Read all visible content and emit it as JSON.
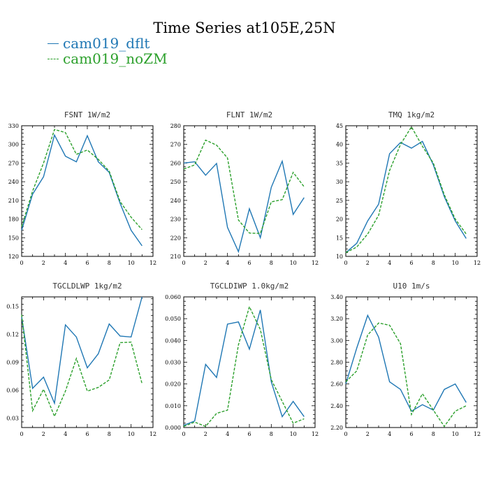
{
  "figure": {
    "title": "Time Series at105E,25N",
    "colors": {
      "dflt": "#1f77b4",
      "noZM": "#2ca02c"
    },
    "legend": [
      {
        "name": "cam019_dflt",
        "color": "#1f77b4",
        "style": "solid"
      },
      {
        "name": "cam019_noZM",
        "color": "#2ca02c",
        "style": "dashed"
      }
    ]
  },
  "chart_data": [
    {
      "type": "line",
      "title": "FSNT   1W/m2",
      "xlim": [
        0,
        12
      ],
      "ylim": [
        120,
        330
      ],
      "xticks": [
        "0",
        "2",
        "4",
        "6",
        "8",
        "10",
        "12"
      ],
      "yticks": [
        "120",
        "150",
        "180",
        "210",
        "240",
        "270",
        "300",
        "330"
      ],
      "x": [
        0,
        1,
        2,
        3,
        4,
        5,
        6,
        7,
        8,
        9,
        10,
        11
      ],
      "series": [
        {
          "name": "cam019_dflt",
          "values": [
            162,
            220,
            248,
            315,
            281,
            272,
            314,
            272,
            255,
            205,
            162,
            137
          ]
        },
        {
          "name": "cam019_noZM",
          "values": [
            168,
            225,
            270,
            324,
            319,
            284,
            291,
            276,
            257,
            208,
            183,
            163
          ]
        }
      ]
    },
    {
      "type": "line",
      "title": "FLNT   1W/m2",
      "xlim": [
        0,
        12
      ],
      "ylim": [
        210,
        280
      ],
      "xticks": [
        "0",
        "2",
        "4",
        "6",
        "8",
        "10",
        "12"
      ],
      "yticks": [
        "210",
        "220",
        "230",
        "240",
        "250",
        "260",
        "270",
        "280"
      ],
      "x": [
        0,
        1,
        2,
        3,
        4,
        5,
        6,
        7,
        8,
        9,
        10,
        11
      ],
      "series": [
        {
          "name": "cam019_dflt",
          "values": [
            260,
            260.7,
            253.5,
            259.8,
            225.5,
            212.5,
            235.5,
            220,
            247,
            261,
            232.5,
            241.5
          ]
        },
        {
          "name": "cam019_noZM",
          "values": [
            256.8,
            259,
            272.3,
            269.6,
            262.7,
            229.5,
            222.5,
            222.3,
            239.2,
            240.4,
            255,
            247.3
          ]
        }
      ]
    },
    {
      "type": "line",
      "title": "TMQ   1kg/m2",
      "xlim": [
        0,
        12
      ],
      "ylim": [
        10,
        45
      ],
      "xticks": [
        "0",
        "2",
        "4",
        "6",
        "8",
        "10",
        "12"
      ],
      "yticks": [
        "10",
        "15",
        "20",
        "25",
        "30",
        "35",
        "40",
        "45"
      ],
      "x": [
        0,
        1,
        2,
        3,
        4,
        5,
        6,
        7,
        8,
        9,
        10,
        11
      ],
      "series": [
        {
          "name": "cam019_dflt",
          "values": [
            11,
            13.5,
            19.5,
            24,
            37.5,
            40.5,
            39,
            40.8,
            34.5,
            26,
            19.5,
            14.8
          ]
        },
        {
          "name": "cam019_noZM",
          "values": [
            11,
            12.5,
            16,
            21,
            33,
            40,
            44.7,
            39.5,
            35,
            26.5,
            20,
            16
          ]
        }
      ]
    },
    {
      "type": "line",
      "title": "TGCLDLWP   1kg/m2",
      "xlim": [
        0,
        12
      ],
      "ylim": [
        0.02,
        0.16
      ],
      "xticks": [
        "0",
        "2",
        "4",
        "6",
        "8",
        "10",
        "12"
      ],
      "yticks": [
        "0.03",
        "0.06",
        "0.09",
        "0.12",
        "0.15"
      ],
      "x": [
        0,
        1,
        2,
        3,
        4,
        5,
        6,
        7,
        8,
        9,
        10,
        11
      ],
      "series": [
        {
          "name": "cam019_dflt",
          "values": [
            0.1385,
            0.062,
            0.074,
            0.046,
            0.13,
            0.117,
            0.084,
            0.099,
            0.131,
            0.118,
            0.117,
            0.16
          ]
        },
        {
          "name": "cam019_noZM",
          "values": [
            0.141,
            0.038,
            0.061,
            0.032,
            0.059,
            0.094,
            0.059,
            0.063,
            0.071,
            0.111,
            0.1115,
            0.067
          ]
        }
      ]
    },
    {
      "type": "line",
      "title": "TGCLDIWP   1.0kg/m2",
      "xlim": [
        0,
        12
      ],
      "ylim": [
        0,
        0.06
      ],
      "xticks": [
        "0",
        "2",
        "4",
        "6",
        "8",
        "10",
        "12"
      ],
      "yticks": [
        "0.000",
        "0.010",
        "0.020",
        "0.030",
        "0.040",
        "0.050",
        "0.060"
      ],
      "x": [
        0,
        1,
        2,
        3,
        4,
        5,
        6,
        7,
        8,
        9,
        10,
        11
      ],
      "series": [
        {
          "name": "cam019_dflt",
          "values": [
            0.001,
            0.003,
            0.029,
            0.023,
            0.0475,
            0.0485,
            0.036,
            0.054,
            0.021,
            0.005,
            0.012,
            0.005
          ]
        },
        {
          "name": "cam019_noZM",
          "values": [
            0.0005,
            0.0025,
            0.0005,
            0.0065,
            0.008,
            0.038,
            0.0555,
            0.045,
            0.022,
            0.012,
            0.002,
            0.004
          ]
        }
      ]
    },
    {
      "type": "line",
      "title": "U10   1m/s",
      "xlim": [
        0,
        12
      ],
      "ylim": [
        2.2,
        3.4
      ],
      "xticks": [
        "0",
        "2",
        "4",
        "6",
        "8",
        "10",
        "12"
      ],
      "yticks": [
        "2.20",
        "2.40",
        "2.60",
        "2.80",
        "3.00",
        "3.20",
        "3.40"
      ],
      "x": [
        0,
        1,
        2,
        3,
        4,
        5,
        6,
        7,
        8,
        9,
        10,
        11
      ],
      "series": [
        {
          "name": "cam019_dflt",
          "values": [
            2.6,
            2.93,
            3.23,
            3.03,
            2.62,
            2.55,
            2.35,
            2.41,
            2.36,
            2.55,
            2.6,
            2.43
          ]
        },
        {
          "name": "cam019_noZM",
          "values": [
            2.62,
            2.72,
            3.05,
            3.16,
            3.14,
            2.97,
            2.32,
            2.51,
            2.36,
            2.21,
            2.35,
            2.4
          ]
        }
      ]
    }
  ]
}
